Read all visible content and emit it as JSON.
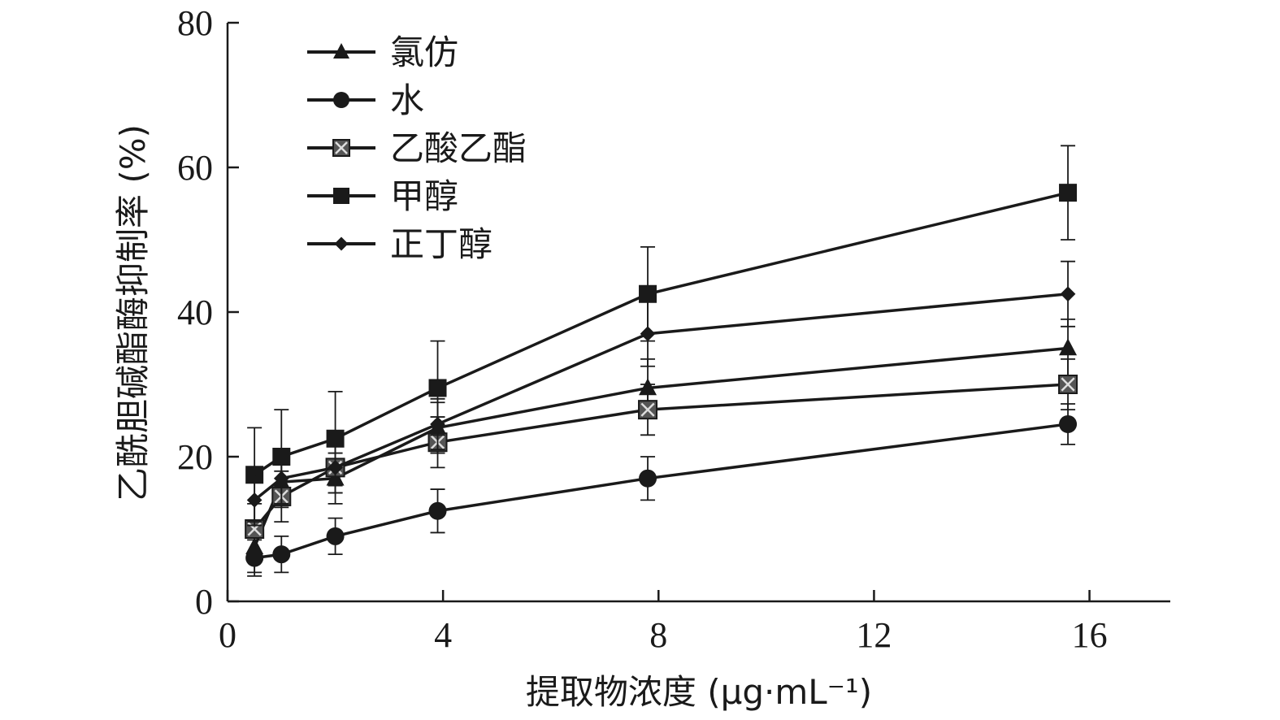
{
  "chart_data": {
    "type": "line",
    "title": "",
    "xlabel": "提取物浓度 (μg·mL⁻¹)",
    "ylabel": "乙酰胆碱酯酶抑制率 (%)",
    "xlim": [
      0,
      17.5
    ],
    "ylim": [
      0,
      80
    ],
    "x_ticks": [
      0,
      4,
      8,
      12,
      16
    ],
    "y_ticks": [
      0,
      20,
      40,
      60,
      80
    ],
    "x_tick_labels": [
      "0",
      "4",
      "8",
      "12",
      "16"
    ],
    "y_tick_labels": [
      "0",
      "20",
      "40",
      "60",
      "80"
    ],
    "grid": false,
    "legend_position": "top-left",
    "x": [
      0.5,
      1,
      2,
      3.9,
      7.8,
      15.6
    ],
    "series": [
      {
        "name": "氯仿",
        "marker": "triangle",
        "values": [
          7.5,
          16.5,
          17.0,
          24.0,
          29.5,
          35.0
        ],
        "errors": [
          3.5,
          3.5,
          3.5,
          3.5,
          4.0,
          4.0
        ]
      },
      {
        "name": "水",
        "marker": "circle",
        "values": [
          6.0,
          6.5,
          9.0,
          12.5,
          17.0,
          24.5
        ],
        "errors": [
          2.5,
          2.5,
          2.5,
          3.0,
          3.0,
          2.8
        ]
      },
      {
        "name": "乙酸乙酯",
        "marker": "x-square",
        "values": [
          10.0,
          14.5,
          18.5,
          22.0,
          26.5,
          30.0
        ],
        "errors": [
          3.5,
          3.5,
          3.5,
          3.5,
          3.5,
          3.5
        ]
      },
      {
        "name": "甲醇",
        "marker": "square",
        "values": [
          17.5,
          20.0,
          22.5,
          29.5,
          42.5,
          56.5
        ],
        "errors": [
          6.5,
          6.5,
          6.5,
          6.5,
          6.5,
          6.5
        ]
      },
      {
        "name": "正丁醇",
        "marker": "diamond",
        "values": [
          14.0,
          17.0,
          18.5,
          24.5,
          37.0,
          42.5
        ],
        "errors": [
          3.5,
          3.5,
          3.5,
          3.5,
          4.5,
          4.5
        ]
      }
    ],
    "colors": {
      "line": "#1a1a1a",
      "marker": "#1a1a1a",
      "x_marker_fill": "#555555"
    }
  }
}
